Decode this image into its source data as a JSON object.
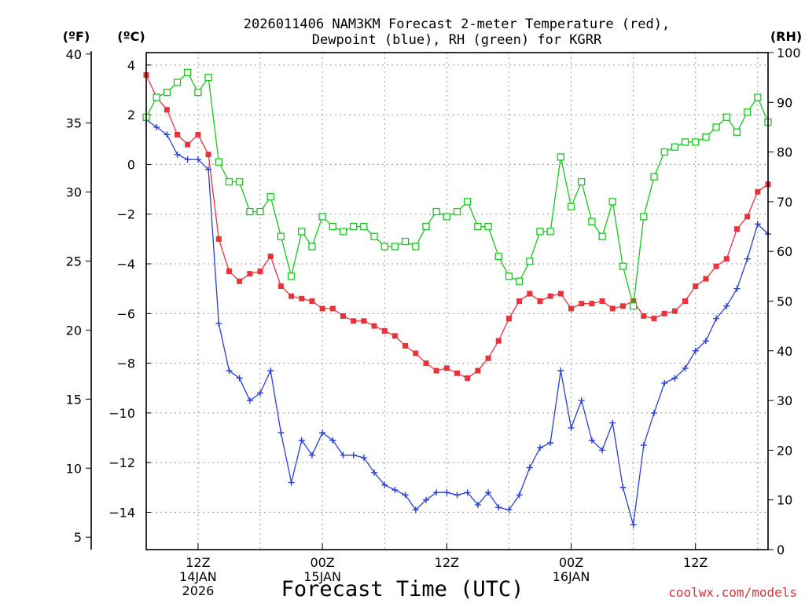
{
  "chart_data": {
    "type": "line",
    "title_line1": "2026011406 NAM3KM Forecast 2-meter Temperature (red),",
    "title_line2": "Dewpoint (blue), RH (green) for KGRR",
    "xlabel": "Forecast Time (UTC)",
    "units": {
      "fahrenheit": "(ºF)",
      "celsius": "(ºC)",
      "rh": "(RH)"
    },
    "credit": "coolwx.com/models",
    "x_forecast_hours": {
      "start": 7,
      "end": 67,
      "step": 1
    },
    "x_ticks": [
      {
        "hour": 12,
        "lines": [
          "12Z",
          "14JAN",
          "2026"
        ]
      },
      {
        "hour": 24,
        "lines": [
          "00Z",
          "15JAN"
        ]
      },
      {
        "hour": 36,
        "lines": [
          "12Z"
        ]
      },
      {
        "hour": 48,
        "lines": [
          "00Z",
          "16JAN"
        ]
      },
      {
        "hour": 60,
        "lines": [
          "12Z"
        ]
      }
    ],
    "y_left_celsius": {
      "range": [
        -15.5,
        4.5
      ],
      "ticks": [
        4,
        2,
        0,
        -2,
        -4,
        -6,
        -8,
        -10,
        -12,
        -14
      ]
    },
    "y_outer_fahrenheit": {
      "ticks": [
        40,
        35,
        30,
        25,
        20,
        15,
        10,
        5
      ]
    },
    "y_right_rh": {
      "range": [
        0,
        100
      ],
      "ticks": [
        100,
        90,
        80,
        70,
        60,
        50,
        40,
        30,
        20,
        10,
        0
      ]
    },
    "grid": true,
    "series": [
      {
        "name": "Temperature",
        "color": "#e8323c",
        "marker": "filled-square",
        "axis": "celsius",
        "values": [
          3.6,
          2.7,
          2.2,
          1.2,
          0.8,
          1.2,
          0.4,
          -3.0,
          -4.3,
          -4.7,
          -4.4,
          -4.3,
          -3.7,
          -4.9,
          -5.3,
          -5.4,
          -5.5,
          -5.8,
          -5.8,
          -6.1,
          -6.3,
          -6.3,
          -6.5,
          -6.7,
          -6.9,
          -7.3,
          -7.6,
          -8.0,
          -8.3,
          -8.2,
          -8.4,
          -8.6,
          -8.3,
          -7.8,
          -7.1,
          -6.2,
          -5.5,
          -5.2,
          -5.5,
          -5.3,
          -5.2,
          -5.8,
          -5.6,
          -5.6,
          -5.5,
          -5.8,
          -5.7,
          -5.5,
          -6.1,
          -6.2,
          -6.0,
          -5.9,
          -5.5,
          -4.9,
          -4.6,
          -4.1,
          -3.8,
          -2.6,
          -2.1,
          -1.1,
          -0.8
        ]
      },
      {
        "name": "Dewpoint",
        "color": "#2a3fd8",
        "marker": "plus",
        "axis": "celsius",
        "values": [
          1.8,
          1.5,
          1.2,
          0.4,
          0.2,
          0.2,
          -0.2,
          -6.4,
          -8.3,
          -8.6,
          -9.5,
          -9.2,
          -8.3,
          -10.8,
          -12.8,
          -11.1,
          -11.7,
          -10.8,
          -11.1,
          -11.7,
          -11.7,
          -11.8,
          -12.4,
          -12.9,
          -13.1,
          -13.3,
          -13.9,
          -13.5,
          -13.2,
          -13.2,
          -13.3,
          -13.2,
          -13.7,
          -13.2,
          -13.8,
          -13.9,
          -13.3,
          -12.2,
          -11.4,
          -11.2,
          -8.3,
          -10.6,
          -9.5,
          -11.1,
          -11.5,
          -10.4,
          -13.0,
          -14.5,
          -11.3,
          -10.0,
          -8.8,
          -8.6,
          -8.2,
          -7.5,
          -7.1,
          -6.2,
          -5.7,
          -5.0,
          -3.8,
          -2.4,
          -2.8
        ]
      },
      {
        "name": "RH",
        "color": "#18c820",
        "marker": "open-square",
        "axis": "rh",
        "values": [
          87,
          91,
          92,
          94,
          96,
          92,
          95,
          78,
          74,
          74,
          68,
          68,
          71,
          63,
          55,
          64,
          61,
          67,
          65,
          64,
          65,
          65,
          63,
          61,
          61,
          62,
          61,
          65,
          68,
          67,
          68,
          70,
          65,
          65,
          59,
          55,
          54,
          58,
          64,
          64,
          79,
          69,
          74,
          66,
          63,
          70,
          57,
          49,
          67,
          75,
          80,
          81,
          82,
          82,
          83,
          85,
          87,
          84,
          88,
          91,
          86
        ]
      }
    ]
  }
}
